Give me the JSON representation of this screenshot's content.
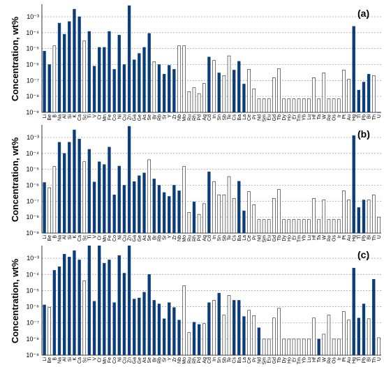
{
  "figure": {
    "colors": {
      "filled": "#0a3d7a",
      "open": "#ffffff",
      "outline": "#1a1a1a"
    }
  },
  "chart_data": [
    {
      "type": "bar",
      "panel_label": "(a)",
      "ylabel": "Concentration, wt%",
      "yscale": "log",
      "ylim": [
        1e-09,
        0.005
      ],
      "ytick_labels": [
        "10⁻⁹",
        "10⁻⁸",
        "10⁻⁷",
        "10⁻⁶",
        "10⁻⁵",
        "10⁻⁴",
        "10⁻³"
      ],
      "categories": [
        "Li",
        "Be",
        "B",
        "Na",
        "Al",
        "Si",
        "K",
        "Ca",
        "Sc",
        "Ti",
        "V",
        "Cr",
        "Mn",
        "Fe",
        "Co",
        "Ni",
        "Cu",
        "Zn",
        "Ga",
        "Ge",
        "As",
        "Se",
        "Br",
        "Rb",
        "Sr",
        "Y",
        "Zr",
        "Nb",
        "Mo",
        "Ru",
        "Rh",
        "Pd",
        "Ag",
        "Cd",
        "In",
        "Sn",
        "Sb",
        "Te",
        "Cs",
        "Ba",
        "La",
        "Ce",
        "Pr",
        "Nd",
        "Sm",
        "Eu",
        "Gd",
        "Tb",
        "Dy",
        "Ho",
        "Er",
        "Tm",
        "Yb",
        "Lu",
        "Hf",
        "Ta",
        "W",
        "Re",
        "Os",
        "Ir",
        "Pt",
        "Au",
        "Hg",
        "Tl",
        "Pb",
        "Bi",
        "Th",
        "U"
      ],
      "values": [
        7e-06,
        1e-06,
        1.5e-05,
        0.0004,
        8e-05,
        0.0005,
        0.003,
        0.001,
        3e-05,
        0.00012,
        8e-07,
        1.2e-05,
        1.2e-05,
        0.00012,
        5e-07,
        7e-05,
        1e-06,
        0.005,
        2e-06,
        5e-06,
        1.2e-05,
        9e-05,
        1.5e-06,
        1e-06,
        2.5e-07,
        9e-07,
        5e-07,
        1.5e-05,
        1.5e-05,
        2e-08,
        3.5e-08,
        1.5e-08,
        6.5e-08,
        3e-06,
        1.8e-06,
        3e-07,
        2e-07,
        3.5e-06,
        4.5e-07,
        1.6e-06,
        6e-08,
        5e-07,
        3e-08,
        7e-09,
        7e-09,
        7e-09,
        1.5e-07,
        5.5e-07,
        7e-09,
        7e-09,
        7e-09,
        7e-09,
        7e-09,
        7e-09,
        1.5e-07,
        7e-09,
        3e-07,
        7e-09,
        7e-09,
        7e-09,
        4.5e-07,
        1.2e-07,
        0.00025,
        2.5e-08,
        8e-08,
        2.5e-07,
        2e-07,
        1e-09
      ],
      "filled": [
        1,
        1,
        0,
        1,
        1,
        1,
        1,
        1,
        0,
        1,
        1,
        1,
        1,
        1,
        1,
        1,
        1,
        1,
        1,
        1,
        1,
        1,
        0,
        1,
        1,
        1,
        1,
        0,
        0,
        0,
        0,
        0,
        0,
        1,
        0,
        1,
        0,
        0,
        1,
        1,
        1,
        0,
        0,
        0,
        0,
        0,
        0,
        0,
        0,
        0,
        0,
        0,
        0,
        0,
        0,
        0,
        0,
        0,
        0,
        0,
        0,
        0,
        1,
        1,
        1,
        1,
        0,
        1
      ]
    },
    {
      "type": "bar",
      "panel_label": "(b)",
      "ylabel": "Concentration, wt%",
      "yscale": "log",
      "ylim": [
        1e-09,
        0.005
      ],
      "ytick_labels": [
        "10⁻⁹",
        "10⁻⁸",
        "10⁻⁷",
        "10⁻⁶",
        "10⁻⁵",
        "10⁻⁴",
        "10⁻³"
      ],
      "categories": [
        "Li",
        "Be",
        "B",
        "Na",
        "Al",
        "Si",
        "K",
        "Ca",
        "Sc",
        "Ti",
        "V",
        "Cr",
        "Mn",
        "Fe",
        "Co",
        "Ni",
        "Cu",
        "Zn",
        "Ga",
        "Ge",
        "As",
        "Se",
        "Br",
        "Rb",
        "Sr",
        "Y",
        "Zr",
        "Nb",
        "Mo",
        "Ru",
        "Rh",
        "Pd",
        "Ag",
        "Cd",
        "In",
        "Sn",
        "Sb",
        "Te",
        "Cs",
        "Ba",
        "La",
        "Ce",
        "Pr",
        "Nd",
        "Sm",
        "Eu",
        "Gd",
        "Tb",
        "Dy",
        "Ho",
        "Er",
        "Tm",
        "Yb",
        "Lu",
        "Hf",
        "Ta",
        "W",
        "Re",
        "Os",
        "Ir",
        "Pt",
        "Au",
        "Hg",
        "Tl",
        "Pb",
        "Bi",
        "Th",
        "U"
      ],
      "values": [
        1.5e-06,
        7e-07,
        1.5e-05,
        0.0005,
        0.0001,
        0.0005,
        0.003,
        0.0008,
        3e-05,
        0.00018,
        1.6e-06,
        3e-05,
        2e-05,
        0.00025,
        2.5e-07,
        1.6e-05,
        1e-06,
        0.005,
        1.7e-06,
        4e-06,
        6e-06,
        4e-05,
        2.5e-06,
        1e-06,
        3.5e-07,
        2e-07,
        1e-06,
        4.5e-07,
        1.5e-05,
        2e-08,
        9e-08,
        1.5e-08,
        7e-08,
        7e-06,
        1.7e-06,
        2.5e-07,
        2.5e-07,
        3.5e-06,
        1.5e-07,
        1.8e-06,
        2.5e-08,
        4e-07,
        6e-08,
        7e-09,
        7e-09,
        7e-09,
        1.5e-07,
        5.5e-07,
        7e-09,
        7e-09,
        7e-09,
        7e-09,
        7e-09,
        7e-09,
        1.5e-07,
        7e-09,
        1.2e-07,
        7e-09,
        7e-09,
        7e-09,
        4.5e-07,
        1.2e-07,
        0.0013,
        4e-08,
        1.2e-07,
        1.2e-07,
        2.5e-07,
        1e-08
      ],
      "filled": [
        1,
        0,
        0,
        1,
        1,
        1,
        1,
        1,
        0,
        1,
        1,
        1,
        1,
        1,
        1,
        1,
        1,
        1,
        1,
        1,
        1,
        0,
        1,
        1,
        1,
        1,
        1,
        1,
        0,
        0,
        1,
        0,
        0,
        1,
        0,
        0,
        0,
        0,
        0,
        1,
        1,
        0,
        0,
        0,
        0,
        0,
        0,
        0,
        0,
        0,
        0,
        0,
        0,
        0,
        0,
        0,
        0,
        0,
        0,
        0,
        0,
        0,
        1,
        1,
        1,
        0,
        0,
        0
      ]
    },
    {
      "type": "bar",
      "panel_label": "(c)",
      "ylabel": "Concentration, wt%",
      "yscale": "log",
      "ylim": [
        1e-09,
        0.005
      ],
      "ytick_labels": [
        "10⁻⁹",
        "10⁻⁸",
        "10⁻⁷",
        "10⁻⁶",
        "10⁻⁵",
        "10⁻⁴",
        "10⁻³"
      ],
      "categories": [
        "Li",
        "Be",
        "B",
        "Na",
        "Al",
        "Si",
        "K",
        "Ca",
        "Sc",
        "Ti",
        "V",
        "Cr",
        "Mn",
        "Fe",
        "Co",
        "Ni",
        "Cu",
        "Zn",
        "Ga",
        "Ge",
        "As",
        "Se",
        "Br",
        "Rb",
        "Sr",
        "Y",
        "Zr",
        "Nb",
        "Mo",
        "Ru",
        "Rh",
        "Pd",
        "Ag",
        "Cd",
        "In",
        "Sn",
        "Sb",
        "Te",
        "Cs",
        "Ba",
        "La",
        "Ce",
        "Pr",
        "Nd",
        "Sm",
        "Eu",
        "Gd",
        "Tb",
        "Dy",
        "Ho",
        "Er",
        "Tm",
        "Yb",
        "Lu",
        "Hf",
        "Ta",
        "W",
        "Re",
        "Os",
        "Ir",
        "Pt",
        "Au",
        "Hg",
        "Tl",
        "Pb",
        "Bi",
        "Th",
        "U"
      ],
      "values": [
        1.3e-06,
        9e-07,
        0.00018,
        0.0003,
        0.0018,
        0.0012,
        0.003,
        0.0008,
        4e-05,
        0.006,
        2.2e-06,
        0.006,
        0.0005,
        0.0008,
        1.8e-06,
        0.0015,
        0.00012,
        0.006,
        3e-06,
        3.5e-06,
        8e-06,
        0.0001,
        2.5e-06,
        1.5e-06,
        1.8e-07,
        1.8e-06,
        9e-07,
        1.5e-07,
        2e-05,
        2.5e-08,
        1.1e-07,
        8e-08,
        9e-08,
        1.8e-06,
        2.5e-06,
        7e-06,
        3e-07,
        5e-06,
        2.5e-06,
        2.5e-06,
        2.5e-07,
        6e-07,
        2.8e-07,
        5e-08,
        1e-08,
        1e-08,
        2e-07,
        8e-07,
        1e-08,
        1e-08,
        1e-08,
        1e-08,
        1e-08,
        1e-08,
        2e-07,
        1e-08,
        2e-08,
        3e-07,
        1e-08,
        1e-08,
        5e-07,
        1.5e-07,
        0.00025,
        2e-07,
        1.5e-06,
        1.8e-07,
        5e-05,
        1.2e-08
      ],
      "filled": [
        1,
        0,
        1,
        1,
        1,
        1,
        1,
        1,
        0,
        1,
        1,
        1,
        1,
        1,
        1,
        1,
        1,
        1,
        1,
        1,
        1,
        1,
        1,
        1,
        1,
        1,
        1,
        1,
        0,
        0,
        1,
        1,
        0,
        1,
        0,
        1,
        0,
        0,
        1,
        1,
        1,
        0,
        0,
        1,
        0,
        0,
        0,
        0,
        0,
        0,
        0,
        0,
        0,
        0,
        0,
        1,
        0,
        0,
        0,
        0,
        0,
        0,
        1,
        1,
        1,
        0,
        1,
        0
      ]
    }
  ]
}
